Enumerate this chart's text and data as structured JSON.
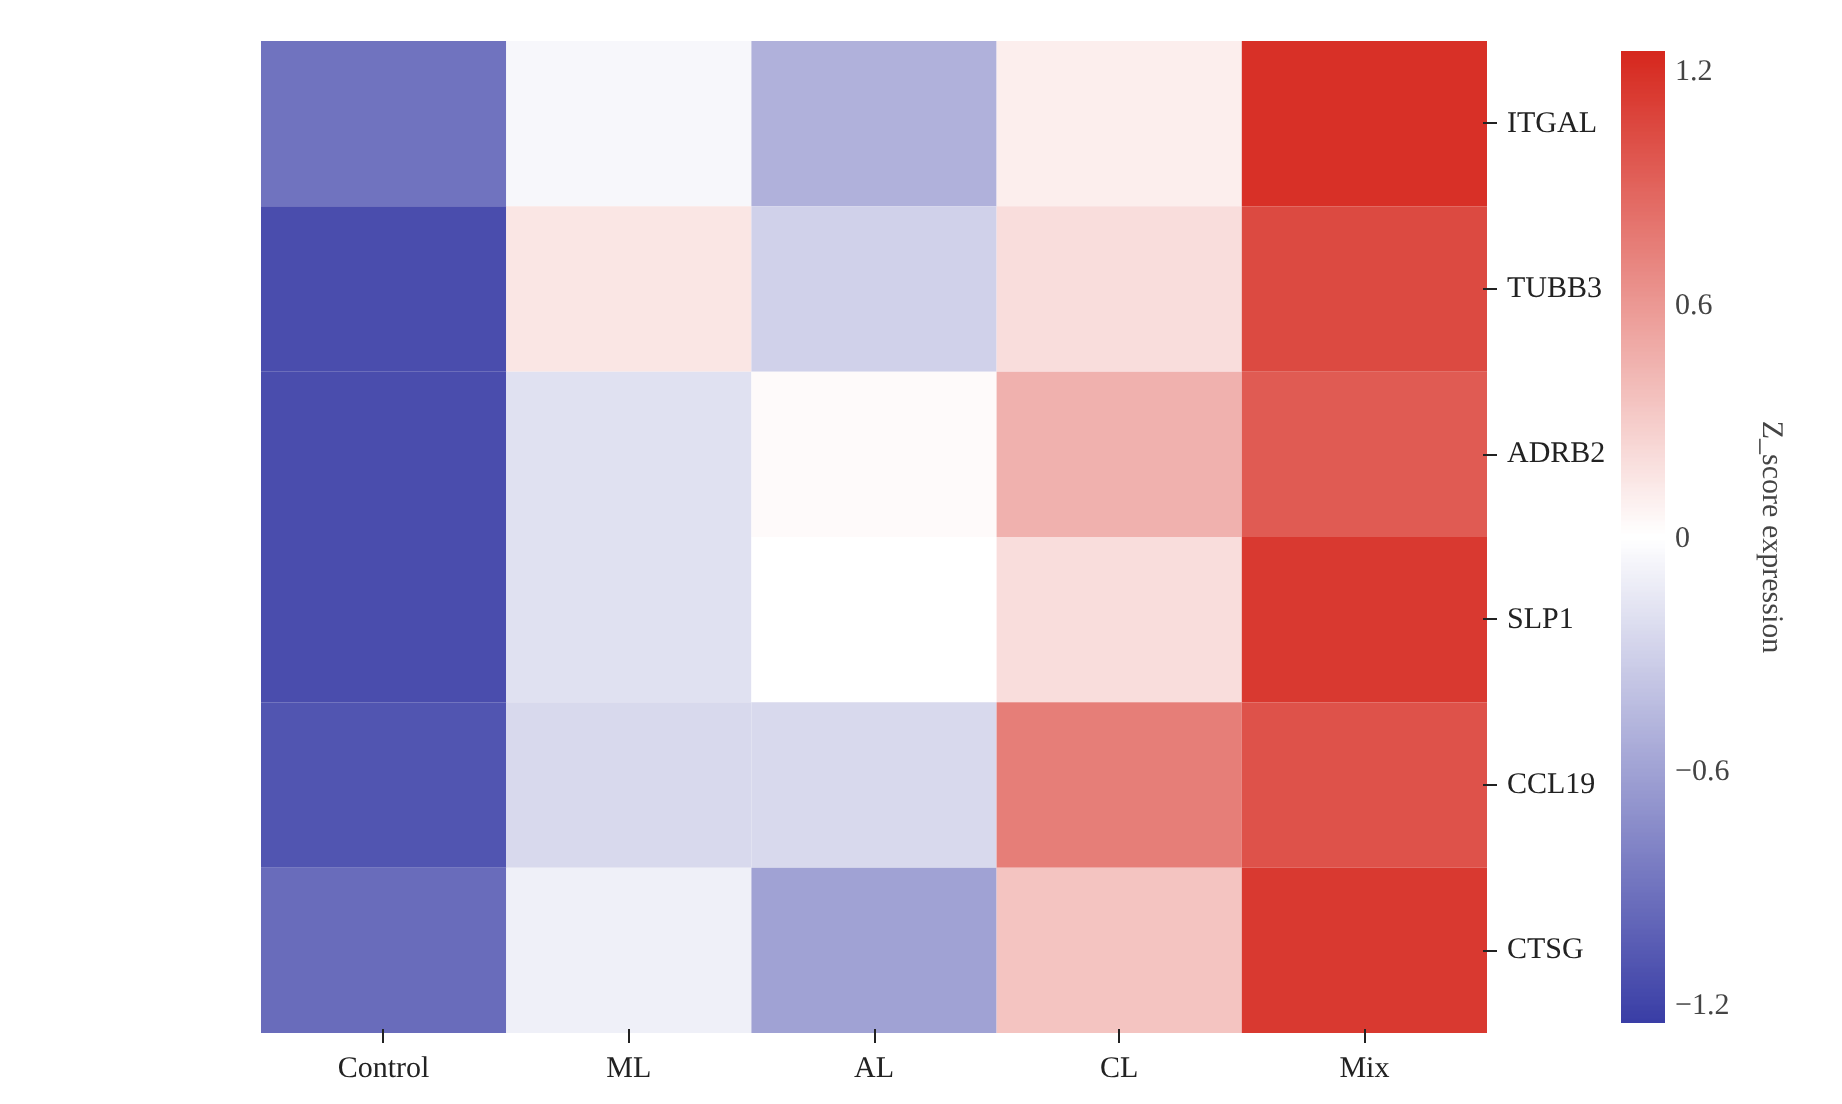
{
  "chart_data": {
    "type": "heatmap",
    "categories": [
      "Control",
      "ML",
      "AL",
      "CL",
      "Mix"
    ],
    "y_categories": [
      "ITGAL",
      "TUBB3",
      "ADRB2",
      "SLP1",
      "CCL19",
      "CTSG"
    ],
    "cells": [
      [
        -0.9,
        -0.05,
        -0.5,
        0.1,
        1.2
      ],
      [
        -1.15,
        0.15,
        -0.3,
        0.2,
        1.05
      ],
      [
        -1.15,
        -0.2,
        0.03,
        0.45,
        0.95
      ],
      [
        -1.15,
        -0.2,
        0.0,
        0.2,
        1.15
      ],
      [
        -1.1,
        -0.25,
        -0.25,
        0.75,
        1.0
      ],
      [
        -0.95,
        -0.1,
        -0.6,
        0.35,
        1.15
      ]
    ],
    "clabel": "Z_score expression",
    "clim": [
      -1.25,
      1.25
    ],
    "cticks": [
      {
        "value": -1.2,
        "label": "−1.2"
      },
      {
        "value": -0.6,
        "label": "−0.6"
      },
      0.0,
      0.6,
      1.2
    ]
  }
}
